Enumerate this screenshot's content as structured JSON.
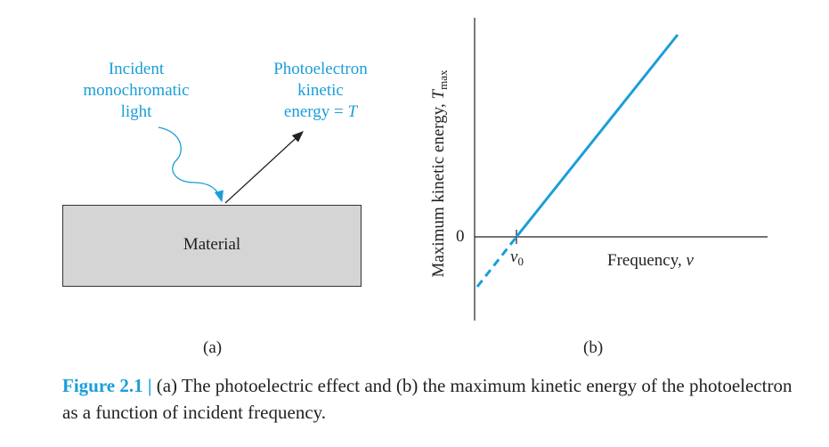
{
  "panel_a": {
    "incident_label": [
      "Incident",
      "monochromatic",
      "light"
    ],
    "photoelectron_label": [
      "Photoelectron",
      "kinetic",
      "energy = "
    ],
    "photoelectron_symbol": "T",
    "material_label": "Material",
    "panel_tag": "(a)"
  },
  "panel_b": {
    "ylabel_main": "Maximum kinetic energy, ",
    "ylabel_symbol": "T",
    "ylabel_sub": "max",
    "zero_label": "0",
    "nu0_label": "ν",
    "nu0_sub": "0",
    "xlabel_main": "Frequency, ",
    "xlabel_symbol": "ν",
    "panel_tag": "(b)"
  },
  "caption": {
    "fig_label": "Figure 2.1 | ",
    "text": "(a) The photoelectric effect and (b) the maximum kinetic energy of the photoelectron as a function of incident frequency."
  },
  "colors": {
    "accent": "#1a9ed8",
    "material_fill": "#d5d5d5",
    "ink": "#222222"
  }
}
